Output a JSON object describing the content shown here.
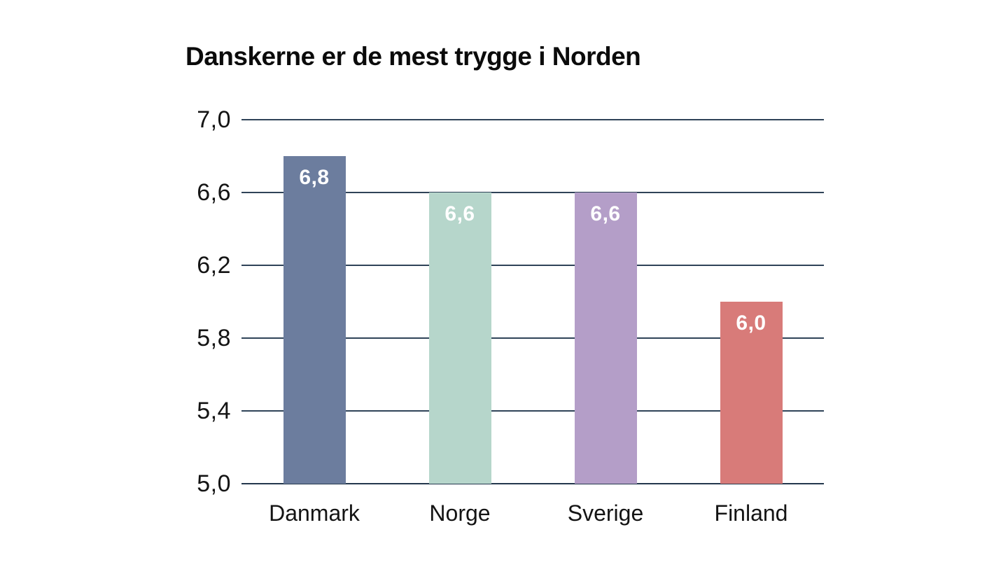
{
  "chart_data": {
    "type": "bar",
    "title": "Danskerne er de mest trygge i Norden",
    "categories": [
      "Danmark",
      "Norge",
      "Sverige",
      "Finland"
    ],
    "values": [
      6.8,
      6.6,
      6.6,
      6.0
    ],
    "value_labels": [
      "6,8",
      "6,6",
      "6,6",
      "6,0"
    ],
    "bar_colors": [
      "#6c7d9e",
      "#b6d6cb",
      "#b49ec8",
      "#d87b79"
    ],
    "value_label_color": "#ffffff",
    "xlabel": "",
    "ylabel": "",
    "ylim": [
      5.0,
      7.0
    ],
    "y_ticks": [
      5.0,
      5.4,
      5.8,
      6.2,
      6.6,
      7.0
    ],
    "y_tick_labels": [
      "5,0",
      "5,4",
      "5,8",
      "6,2",
      "6,6",
      "7,0"
    ],
    "grid": true,
    "legend": "none",
    "gridline_color": "#2f4358",
    "axis_line_color": "#24384d",
    "text_color": "#141414",
    "background": "#ffffff"
  }
}
